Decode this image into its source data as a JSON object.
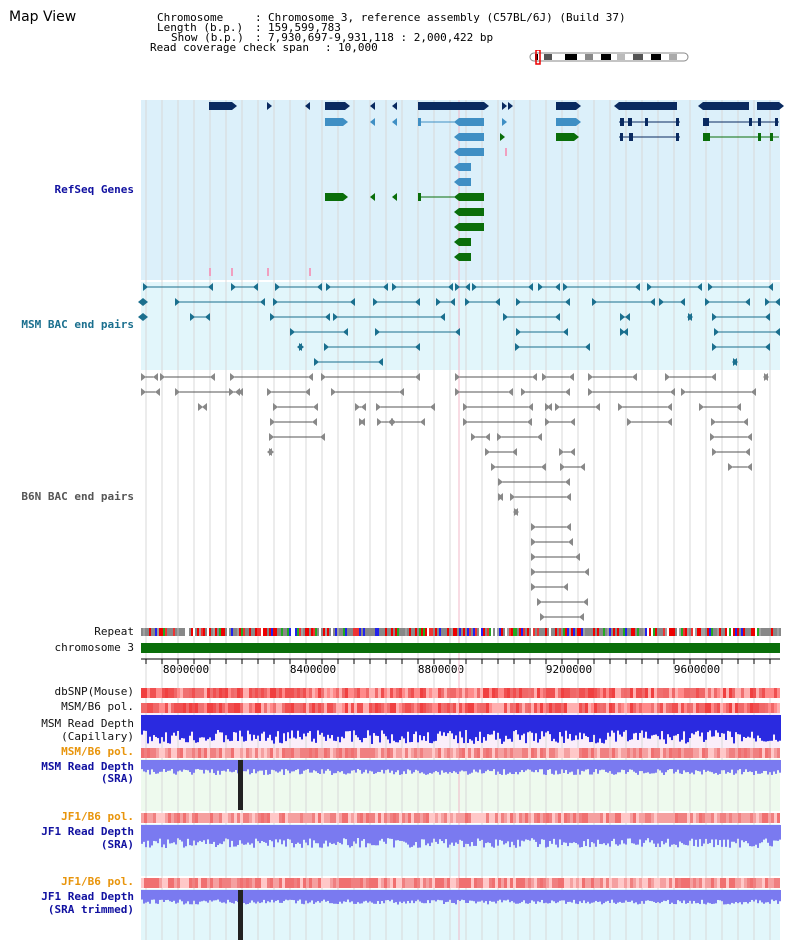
{
  "page": {
    "title": "Map View"
  },
  "info": {
    "chromosome_key": "Chromosome",
    "chromosome_val": "Chromosome 3, reference assembly (C57BL/6J) (Build 37)",
    "length_key": "Length (b.p.)",
    "length_val": "159,599,783",
    "show_key": "Show (b.p.)",
    "show_val": "7,930,697-9,931,118 : 2,000,422 bp",
    "coverage_key": "Read coverage check span",
    "coverage_val": "10,000"
  },
  "tracks": {
    "refseq": "RefSeq Genes",
    "msm_bac": "MSM BAC end pairs",
    "b6n_bac": "B6N BAC end pairs",
    "repeat": "Repeat",
    "chromosome": "chromosome 3",
    "dbsnp": "dbSNP(Mouse)",
    "msm_b6_pol_1": "MSM/B6 pol.",
    "msm_depth_cap_1": "MSM Read Depth",
    "msm_depth_cap_2": "(Capillary)",
    "msm_b6_pol_2": "MSM/B6 pol.",
    "msm_depth_sra_1": "MSM Read Depth",
    "msm_depth_sra_2": "(SRA)",
    "jf1_b6_pol_1": "JF1/B6 pol.",
    "jf1_depth_sra_1": "JF1 Read Depth",
    "jf1_depth_sra_2": "(SRA)",
    "jf1_b6_pol_2": "JF1/B6 pol.",
    "jf1_depth_trim_1": "JF1 Read Depth",
    "jf1_depth_trim_2": "(SRA trimmed)"
  },
  "axis": {
    "start_bp": 7930697,
    "end_bp": 9931118,
    "ticks": [
      {
        "value": 8000000,
        "label": "8000000"
      },
      {
        "value": 8400000,
        "label": "8400000"
      },
      {
        "value": 8800000,
        "label": "8800000"
      },
      {
        "value": 9200000,
        "label": "9200000"
      },
      {
        "value": 9600000,
        "label": "9600000"
      }
    ]
  },
  "colors": {
    "refseq_bg": "#dcf0fa",
    "msm_bg": "#e2f6fb",
    "gene_navy": "#0a2a60",
    "gene_lightblue": "#3f8fc4",
    "gene_green": "#0a6e0a",
    "msm_line": "#1a6f8e",
    "b6n_line": "#555555",
    "chromosome": "#0a6e0a",
    "depth_blue": "#2a2ae0",
    "depth_light": "#7a7af0",
    "pol_red": "#f04040"
  }
}
